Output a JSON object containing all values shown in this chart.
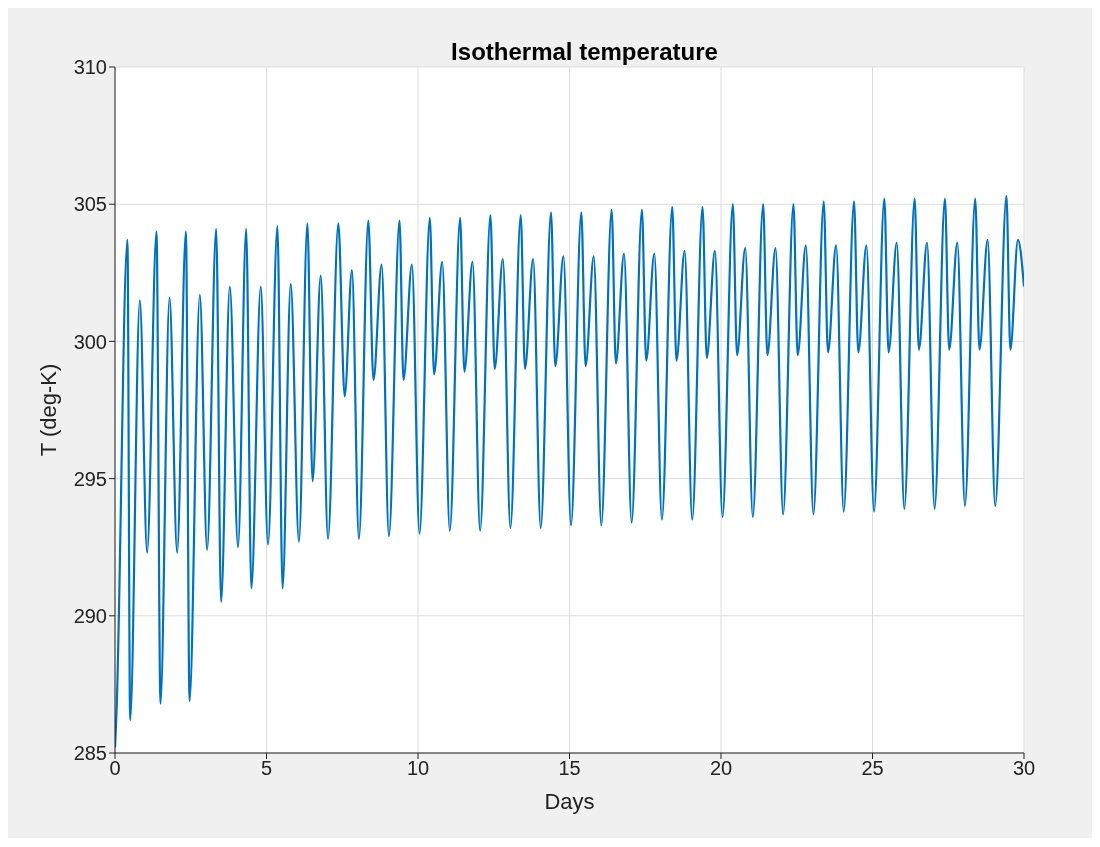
{
  "chart_data": {
    "type": "line",
    "title": "Isothermal temperature",
    "xlabel": "Days",
    "ylabel": "T (deg-K)",
    "xlim": [
      0,
      30
    ],
    "ylim": [
      285,
      310
    ],
    "xticks": [
      0,
      5,
      10,
      15,
      20,
      25,
      30
    ],
    "yticks": [
      285,
      290,
      295,
      300,
      305,
      310
    ],
    "grid": true,
    "legend": false,
    "marker": "none",
    "line_style": "solid",
    "series": [
      {
        "color": "#0072bd",
        "x": [
          0,
          0.05,
          0.41,
          0.5,
          0.82,
          1.06,
          1.37,
          1.5,
          1.8,
          2.05,
          2.34,
          2.46,
          2.8,
          3.04,
          3.34,
          3.5,
          3.79,
          4.06,
          4.33,
          4.5,
          4.81,
          5.05,
          5.36,
          5.53,
          5.8,
          6.07,
          6.35,
          6.52,
          6.79,
          7.03,
          7.37,
          7.58,
          7.82,
          8.05,
          8.36,
          8.53,
          8.8,
          9.04,
          9.39,
          9.52,
          9.8,
          10.05,
          10.39,
          10.53,
          10.8,
          11.05,
          11.39,
          11.53,
          11.8,
          12.05,
          12.39,
          12.53,
          12.8,
          13.05,
          13.39,
          13.53,
          13.8,
          14.05,
          14.39,
          14.53,
          14.8,
          15.05,
          15.39,
          15.53,
          15.8,
          16.05,
          16.39,
          16.53,
          16.8,
          17.05,
          17.39,
          17.53,
          17.8,
          18.05,
          18.39,
          18.53,
          18.8,
          19.05,
          19.39,
          19.53,
          19.8,
          20.05,
          20.39,
          20.53,
          20.8,
          21.05,
          21.39,
          21.53,
          21.8,
          22.05,
          22.39,
          22.53,
          22.8,
          23.05,
          23.39,
          23.53,
          23.8,
          24.05,
          24.39,
          24.53,
          24.8,
          25.05,
          25.39,
          25.53,
          25.8,
          26.05,
          26.39,
          26.53,
          26.8,
          27.05,
          27.39,
          27.53,
          27.8,
          28.05,
          28.39,
          28.53,
          28.8,
          29.05,
          29.42,
          29.55,
          29.8,
          30
        ],
        "values": [
          285.2,
          286.5,
          303.7,
          286.2,
          301.5,
          292.3,
          304.0,
          286.8,
          301.6,
          292.3,
          304.0,
          286.9,
          301.7,
          292.4,
          304.1,
          290.5,
          302.0,
          292.5,
          304.1,
          291.0,
          302.0,
          292.6,
          304.2,
          291.0,
          302.1,
          292.7,
          304.3,
          294.9,
          302.4,
          292.8,
          304.3,
          298.0,
          302.6,
          292.8,
          304.4,
          298.6,
          302.8,
          292.9,
          304.4,
          298.6,
          302.8,
          293.0,
          304.5,
          298.8,
          302.9,
          293.1,
          304.5,
          298.9,
          302.9,
          293.1,
          304.6,
          299.0,
          303.0,
          293.2,
          304.6,
          299.0,
          303.0,
          293.2,
          304.7,
          299.1,
          303.1,
          293.3,
          304.7,
          299.1,
          303.1,
          293.3,
          304.8,
          299.2,
          303.2,
          293.4,
          304.8,
          299.3,
          303.2,
          293.5,
          304.9,
          299.3,
          303.3,
          293.5,
          304.9,
          299.4,
          303.3,
          293.6,
          305.0,
          299.5,
          303.4,
          293.6,
          305.0,
          299.5,
          303.4,
          293.7,
          305.0,
          299.5,
          303.5,
          293.7,
          305.1,
          299.6,
          303.5,
          293.8,
          305.1,
          299.6,
          303.5,
          293.8,
          305.2,
          299.6,
          303.6,
          293.9,
          305.2,
          299.7,
          303.6,
          293.9,
          305.2,
          299.7,
          303.6,
          294.0,
          305.2,
          299.7,
          303.7,
          294.0,
          305.3,
          299.7,
          303.7,
          302.0
        ]
      }
    ]
  }
}
